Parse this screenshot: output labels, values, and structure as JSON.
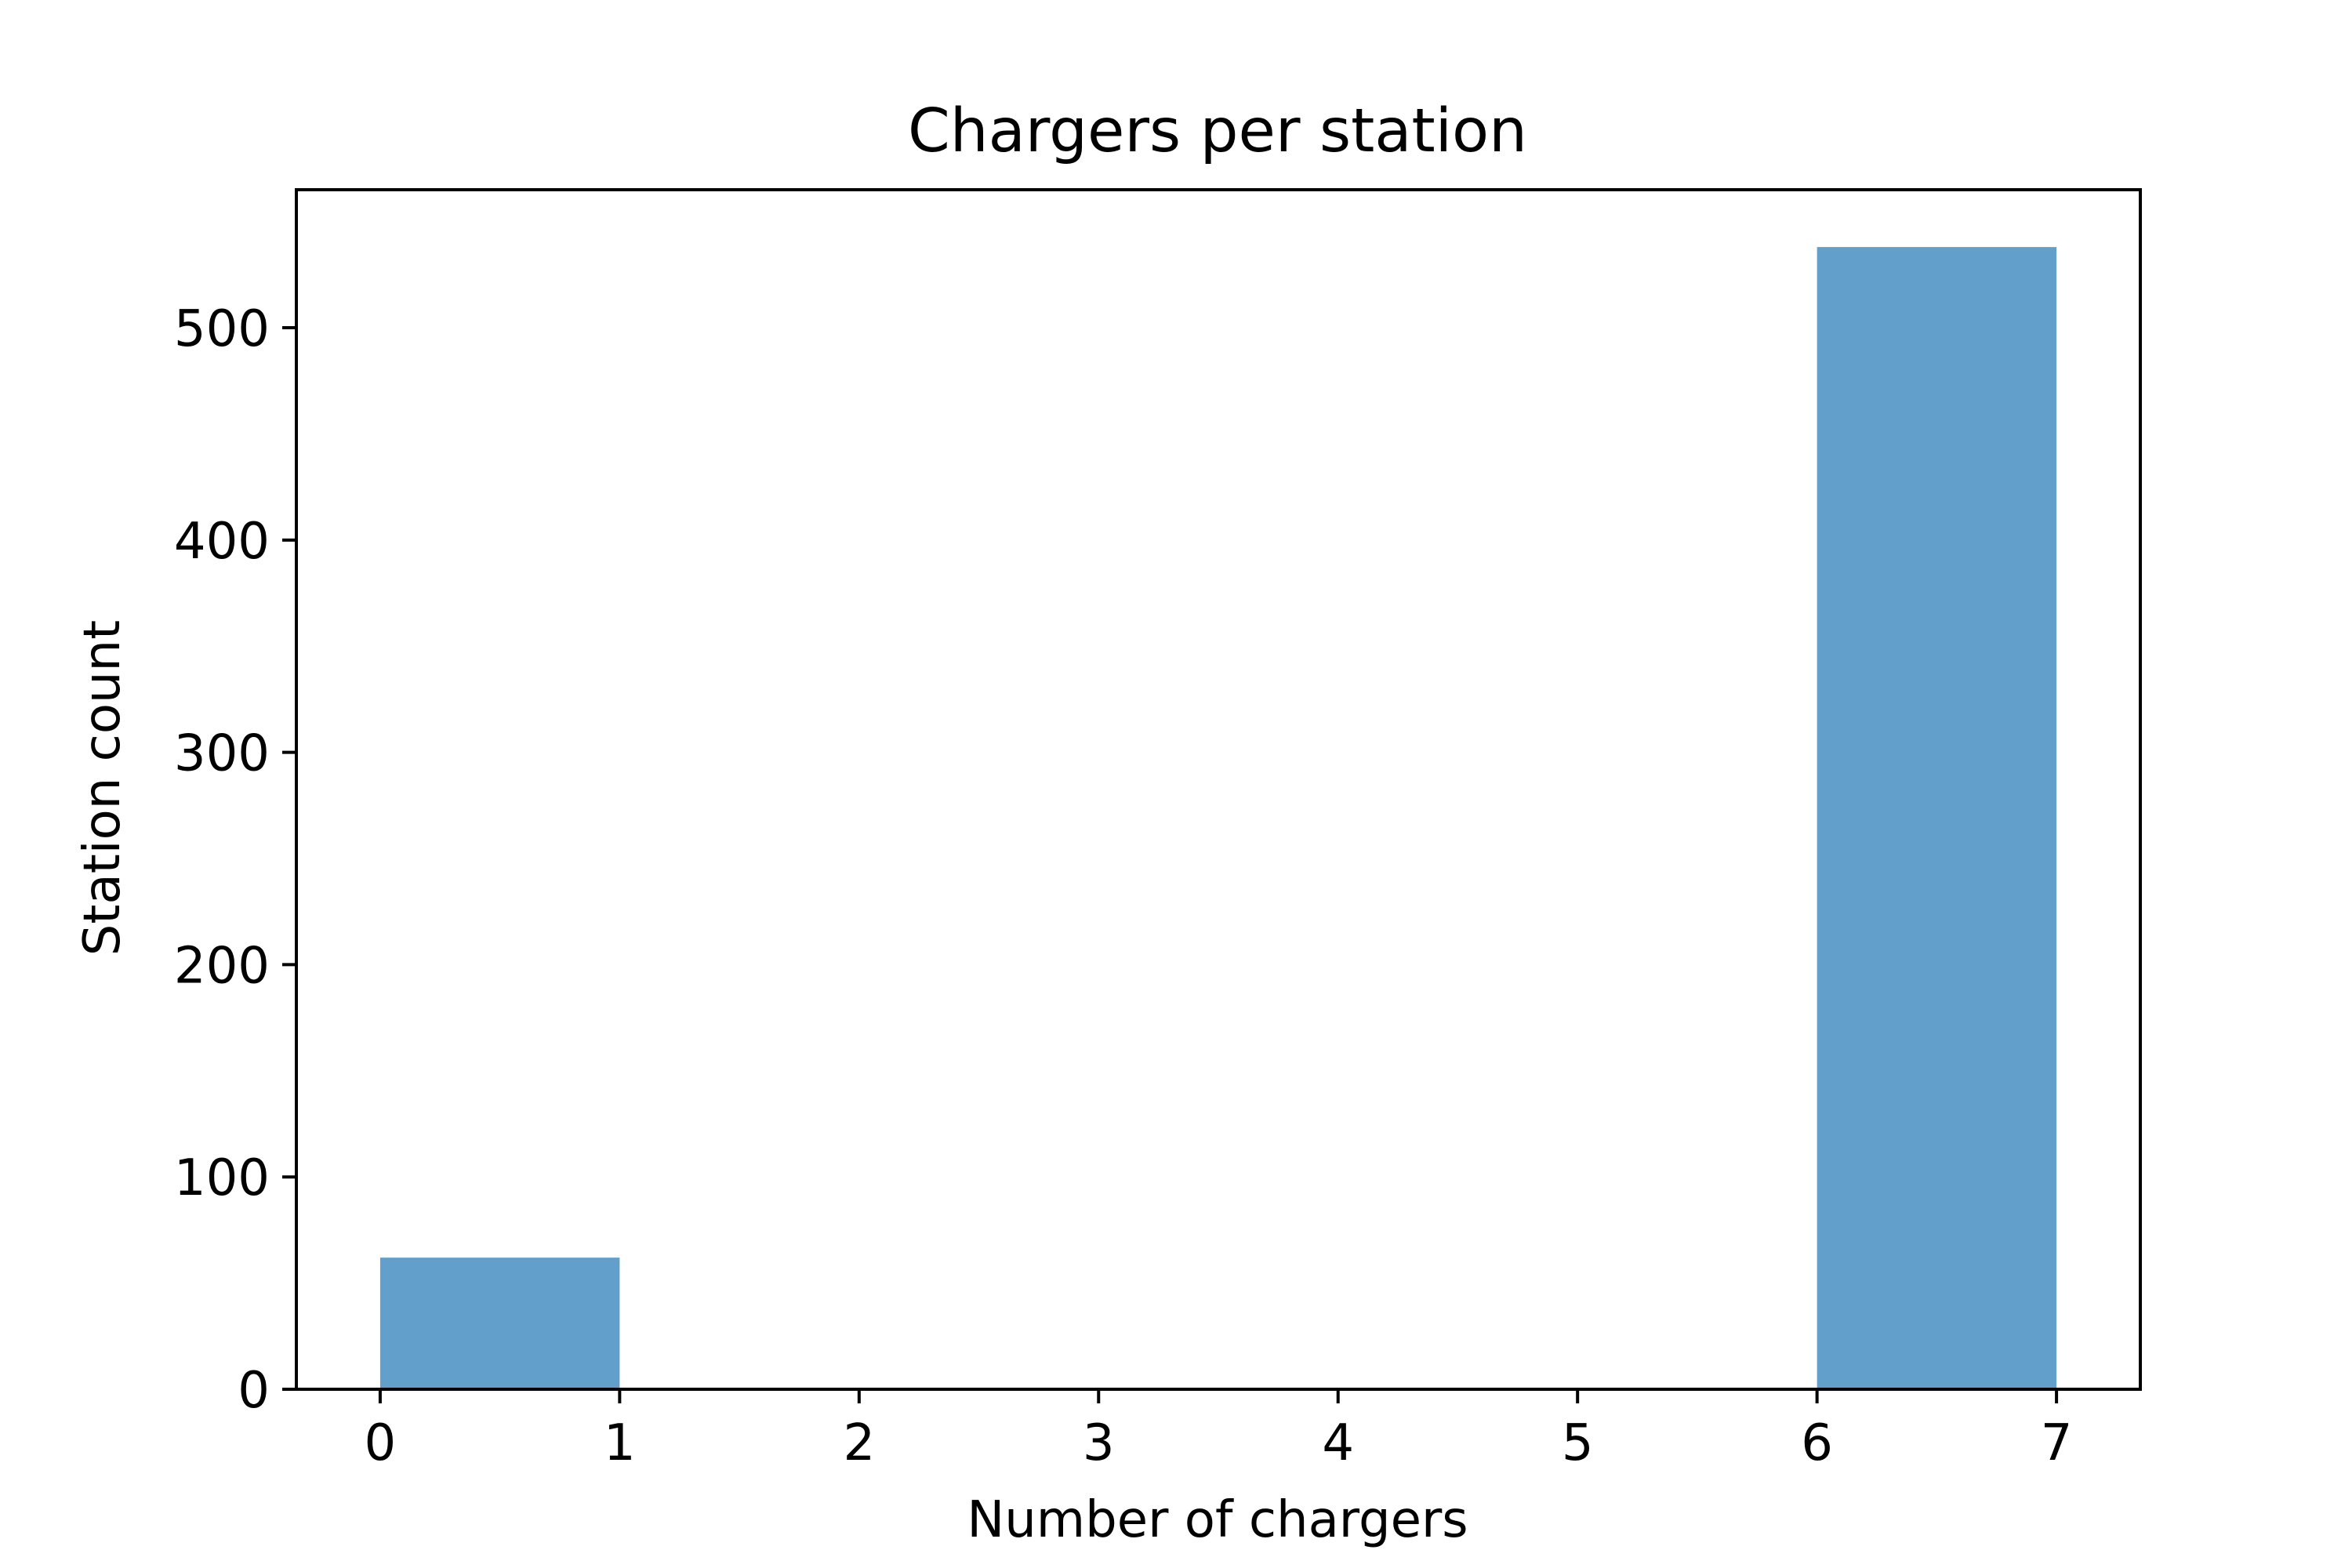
{
  "chart_data": {
    "type": "bar",
    "title": "Chargers per station",
    "xlabel": "Number of chargers",
    "ylabel": "Station count",
    "bins": [
      {
        "x0": 0,
        "x1": 1,
        "value": 62
      },
      {
        "x0": 1,
        "x1": 2,
        "value": 0
      },
      {
        "x0": 2,
        "x1": 3,
        "value": 0
      },
      {
        "x0": 3,
        "x1": 4,
        "value": 0
      },
      {
        "x0": 4,
        "x1": 5,
        "value": 0
      },
      {
        "x0": 5,
        "x1": 6,
        "value": 0
      },
      {
        "x0": 6,
        "x1": 7,
        "value": 538
      }
    ],
    "xlim": [
      -0.35,
      7.35
    ],
    "ylim": [
      0,
      565
    ],
    "xticks": [
      0,
      1,
      2,
      3,
      4,
      5,
      6,
      7
    ],
    "yticks": [
      0,
      100,
      200,
      300,
      400,
      500
    ],
    "bar_color": "#62a0cb",
    "grid": false,
    "legend": "none"
  }
}
